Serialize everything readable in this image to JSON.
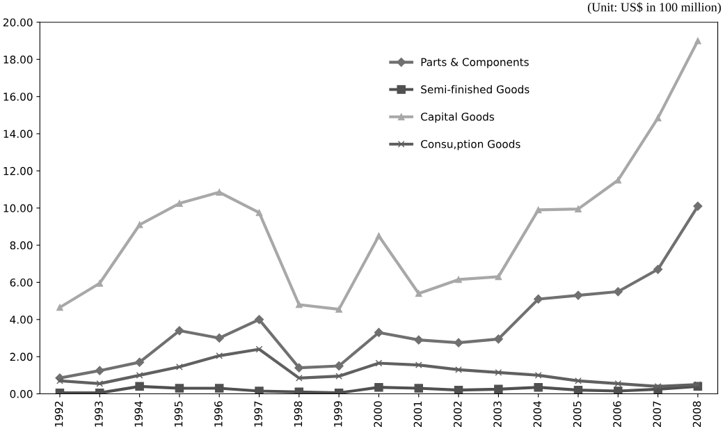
{
  "chart_data": {
    "type": "line",
    "subtitle": "(Unit: US$ in 100 million)",
    "categories": [
      "1992",
      "1993",
      "1994",
      "1995",
      "1996",
      "1997",
      "1998",
      "1999",
      "2000",
      "2001",
      "2002",
      "2003",
      "2004",
      "2005",
      "2006",
      "2007",
      "2008"
    ],
    "series": [
      {
        "name": "Parts & Components",
        "color": "#707070",
        "marker": "diamond",
        "values": [
          0.85,
          1.25,
          1.7,
          3.4,
          3.0,
          4.0,
          1.4,
          1.5,
          3.3,
          2.9,
          2.75,
          2.95,
          5.1,
          5.3,
          5.5,
          6.7,
          10.1
        ]
      },
      {
        "name": "Semi-finished Goods",
        "color": "#505050",
        "marker": "square",
        "values": [
          0.05,
          0.05,
          0.4,
          0.3,
          0.3,
          0.15,
          0.1,
          0.05,
          0.35,
          0.3,
          0.2,
          0.25,
          0.35,
          0.2,
          0.15,
          0.25,
          0.4
        ]
      },
      {
        "name": "Capital Goods",
        "color": "#a8a8a8",
        "marker": "triangle",
        "values": [
          4.65,
          5.95,
          9.1,
          10.25,
          10.85,
          9.75,
          4.8,
          4.55,
          8.5,
          5.4,
          6.15,
          6.3,
          9.9,
          9.95,
          11.5,
          14.85,
          19.0
        ]
      },
      {
        "name": "Consu,ption Goods",
        "color": "#606060",
        "marker": "cross",
        "values": [
          0.7,
          0.55,
          1.0,
          1.45,
          2.05,
          2.4,
          0.85,
          0.95,
          1.65,
          1.55,
          1.3,
          1.15,
          1.0,
          0.7,
          0.55,
          0.4,
          0.5
        ]
      }
    ],
    "ylim": [
      0,
      20
    ],
    "yticks": [
      {
        "value": 0,
        "label": "0.00"
      },
      {
        "value": 2,
        "label": "2.00"
      },
      {
        "value": 4,
        "label": "4.00"
      },
      {
        "value": 6,
        "label": "6.00"
      },
      {
        "value": 8,
        "label": "8.00"
      },
      {
        "value": 10,
        "label": "10.00"
      },
      {
        "value": 12,
        "label": "12.00"
      },
      {
        "value": 14,
        "label": "14.00"
      },
      {
        "value": 16,
        "label": "16.00"
      },
      {
        "value": 18,
        "label": "18.00"
      },
      {
        "value": 20,
        "label": "20.00"
      }
    ],
    "grid": false,
    "legend": "top",
    "line_style": "solid"
  }
}
